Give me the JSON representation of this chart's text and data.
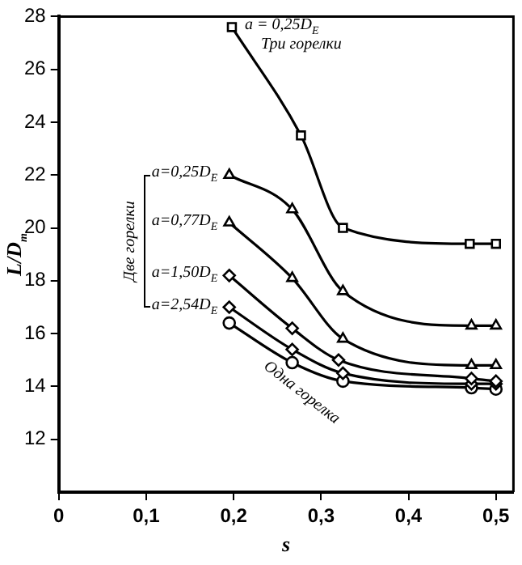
{
  "chart_data": {
    "type": "line",
    "xlabel": "s",
    "ylabel": "L/D$_{т}$",
    "xlim": [
      0,
      0.52
    ],
    "xticks": [
      0,
      {
        "value": 0.1,
        "label": "0,1"
      },
      {
        "value": 0.2,
        "label": "0,2"
      },
      {
        "value": 0.3,
        "label": "0,3"
      },
      {
        "value": 0.4,
        "label": "0,4"
      },
      {
        "value": 0.5,
        "label": "0,5"
      }
    ],
    "ylim": [
      10,
      28
    ],
    "yticks": [
      12,
      14,
      16,
      18,
      20,
      22,
      24,
      26,
      28
    ],
    "grid": false,
    "legend": "left",
    "line_style": "solid",
    "series": [
      {
        "name": "a = 0,25D$_{E}$",
        "color": "#000000",
        "marker": "square",
        "x": [
          0.198,
          0.277,
          0.325,
          0.47,
          0.5
        ],
        "values": [
          27.6,
          23.5,
          20.0,
          19.4,
          19.4
        ]
      },
      {
        "name": "a=0,25D$_{E}$",
        "color": "#000000",
        "marker": "triangle",
        "x": [
          0.195,
          0.267,
          0.325,
          0.472,
          0.5
        ],
        "values": [
          22.0,
          20.7,
          17.6,
          16.3,
          16.3
        ]
      },
      {
        "name": "a=0,77D$_{E}$",
        "color": "#000000",
        "marker": "triangle",
        "x": [
          0.195,
          0.267,
          0.325,
          0.472,
          0.5
        ],
        "values": [
          20.2,
          18.1,
          15.8,
          14.8,
          14.8
        ]
      },
      {
        "name": "a=1,50D$_{E}$",
        "color": "#000000",
        "marker": "diamond",
        "x": [
          0.195,
          0.267,
          0.32,
          0.472,
          0.5
        ],
        "values": [
          18.2,
          16.2,
          15.0,
          14.3,
          14.2
        ]
      },
      {
        "name": "a=2,54D$_{E}$",
        "color": "#000000",
        "marker": "diamond",
        "x": [
          0.195,
          0.267,
          0.325,
          0.472,
          0.5
        ],
        "values": [
          17.0,
          15.4,
          14.5,
          14.1,
          14.1
        ]
      },
      {
        "color": "#000000",
        "marker": "circle",
        "x": [
          0.195,
          0.267,
          0.325,
          0.472,
          0.5
        ],
        "values": [
          16.4,
          14.9,
          14.2,
          13.95,
          13.9
        ]
      }
    ],
    "annotations": [
      "Три горелки",
      "Две горелки",
      "Одна горелка"
    ]
  }
}
